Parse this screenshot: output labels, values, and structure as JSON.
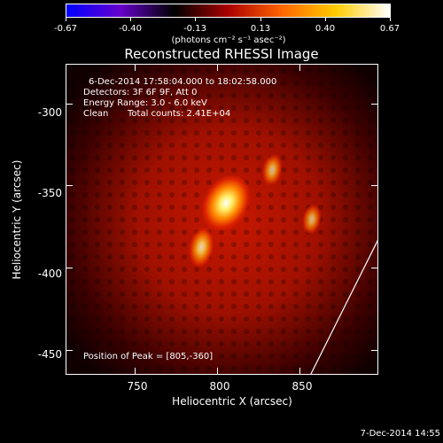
{
  "colorbar": {
    "tick_labels": [
      "-0.67",
      "-0.40",
      "-0.13",
      "0.13",
      "0.40",
      "0.67"
    ],
    "tick_values": [
      -0.67,
      -0.4,
      -0.13,
      0.13,
      0.4,
      0.67
    ],
    "range": [
      -0.67,
      0.67
    ],
    "units": "(photons cm⁻² s⁻¹ asec⁻²)",
    "colors": [
      "#0000ff",
      "#6600cc",
      "#000000",
      "#aa0000",
      "#ff6600",
      "#ffcc00",
      "#ffffff"
    ]
  },
  "plot": {
    "title": "Reconstructed RHESSI Image",
    "annotations": {
      "time_range": "6-Dec-2014 17:58:04.000 to 18:02:58.000",
      "detectors": "Detectors: 3F 6F 9F, Att 0",
      "energy": "Energy Range: 3.0 - 6.0 keV",
      "clean": "Clean",
      "total_counts": "Total counts: 2.41E+04",
      "peak": "Position of Peak = [805,-360]"
    },
    "xlabel": "Heliocentric X (arcsec)",
    "ylabel": "Heliocentric Y (arcsec)",
    "xticks": [
      "750",
      "800",
      "850"
    ],
    "xtick_values": [
      750,
      800,
      850
    ],
    "yticks": [
      "-300",
      "-350",
      "-400",
      "-450"
    ],
    "ytick_values": [
      -300,
      -350,
      -400,
      -450
    ],
    "xlim": [
      708,
      898
    ],
    "ylim": [
      -465,
      -276
    ],
    "sources": [
      {
        "x": 805,
        "y": -360,
        "intensity": 1.0
      },
      {
        "x": 790,
        "y": -387,
        "intensity": 0.55
      },
      {
        "x": 833,
        "y": -340,
        "intensity": 0.35
      },
      {
        "x": 857,
        "y": -370,
        "intensity": 0.3
      }
    ],
    "limb_line": {
      "x": [
        856,
        898
      ],
      "y": [
        -465,
        -381
      ]
    }
  },
  "timestamp": "7-Dec-2014 14:55"
}
